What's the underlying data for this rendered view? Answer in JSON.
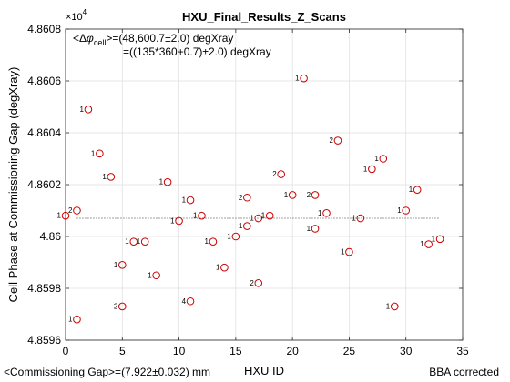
{
  "chart_data": {
    "type": "scatter",
    "title": "HXU_Final_Results_Z_Scans",
    "xlabel": "HXU ID",
    "ylabel": "Cell Phase at Commissioning Gap (degXray)",
    "xlim": [
      0,
      35
    ],
    "ylim": [
      4.8596,
      4.8608
    ],
    "x_ticks": [
      0,
      5,
      10,
      15,
      20,
      25,
      30,
      35
    ],
    "x_tick_labels": [
      "0",
      "5",
      "10",
      "15",
      "20",
      "25",
      "30",
      "35"
    ],
    "y_ticks": [
      4.8596,
      4.8598,
      4.86,
      4.8602,
      4.8604,
      4.8606,
      4.8608
    ],
    "y_tick_labels": [
      "4.8596",
      "4.8598",
      "4.86",
      "4.8602",
      "4.8604",
      "4.8606",
      "4.8608"
    ],
    "y_exponent_label": "×10",
    "y_exponent_power": "4",
    "grid": true,
    "mean_line": 4.86007,
    "marker_color": "#cc0000",
    "mean_line_color": "#444444",
    "annotation_prefix": "<Δ",
    "annotation_phi": "φ",
    "annotation_sub": "cell",
    "annotation_line1_rest": ">=(48,600.7±2.0) degXray",
    "annotation_line2": "=((135*360+0.7)±2.0) degXray",
    "points": [
      {
        "x": 0,
        "y": 4.86008,
        "label": "1"
      },
      {
        "x": 1,
        "y": 4.8601,
        "label": "2"
      },
      {
        "x": 1,
        "y": 4.85968,
        "label": "1"
      },
      {
        "x": 2,
        "y": 4.86049,
        "label": "1"
      },
      {
        "x": 3,
        "y": 4.86032,
        "label": "1"
      },
      {
        "x": 4,
        "y": 4.86023,
        "label": "1"
      },
      {
        "x": 5,
        "y": 4.85989,
        "label": "1"
      },
      {
        "x": 5,
        "y": 4.85973,
        "label": "2"
      },
      {
        "x": 6,
        "y": 4.85998,
        "label": "1"
      },
      {
        "x": 7,
        "y": 4.85998,
        "label": "1"
      },
      {
        "x": 8,
        "y": 4.85985,
        "label": "1"
      },
      {
        "x": 9,
        "y": 4.86021,
        "label": "1"
      },
      {
        "x": 10,
        "y": 4.86006,
        "label": "1"
      },
      {
        "x": 11,
        "y": 4.86014,
        "label": "1"
      },
      {
        "x": 11,
        "y": 4.85975,
        "label": "4"
      },
      {
        "x": 12,
        "y": 4.86008,
        "label": "1"
      },
      {
        "x": 13,
        "y": 4.85998,
        "label": "1"
      },
      {
        "x": 14,
        "y": 4.85988,
        "label": "1"
      },
      {
        "x": 15,
        "y": 4.86,
        "label": "1"
      },
      {
        "x": 16,
        "y": 4.86015,
        "label": "2"
      },
      {
        "x": 16,
        "y": 4.86004,
        "label": "1"
      },
      {
        "x": 17,
        "y": 4.86007,
        "label": "1"
      },
      {
        "x": 17,
        "y": 4.85982,
        "label": "2"
      },
      {
        "x": 18,
        "y": 4.86008,
        "label": "1"
      },
      {
        "x": 19,
        "y": 4.86024,
        "label": "2"
      },
      {
        "x": 20,
        "y": 4.86016,
        "label": "1"
      },
      {
        "x": 21,
        "y": 4.86061,
        "label": "1"
      },
      {
        "x": 22,
        "y": 4.86016,
        "label": "2"
      },
      {
        "x": 22,
        "y": 4.86003,
        "label": "1"
      },
      {
        "x": 23,
        "y": 4.86009,
        "label": "1"
      },
      {
        "x": 24,
        "y": 4.86037,
        "label": "2"
      },
      {
        "x": 25,
        "y": 4.85994,
        "label": "1"
      },
      {
        "x": 26,
        "y": 4.86007,
        "label": "1"
      },
      {
        "x": 27,
        "y": 4.86026,
        "label": "1"
      },
      {
        "x": 28,
        "y": 4.8603,
        "label": "1"
      },
      {
        "x": 29,
        "y": 4.85973,
        "label": "1"
      },
      {
        "x": 30,
        "y": 4.8601,
        "label": "1"
      },
      {
        "x": 31,
        "y": 4.86018,
        "label": "1"
      },
      {
        "x": 32,
        "y": 4.85997,
        "label": "1"
      },
      {
        "x": 33,
        "y": 4.85999,
        "label": "1"
      }
    ]
  },
  "footer": {
    "left": "<Commissioning Gap>=(7.922±0.032) mm",
    "right": "BBA corrected"
  }
}
